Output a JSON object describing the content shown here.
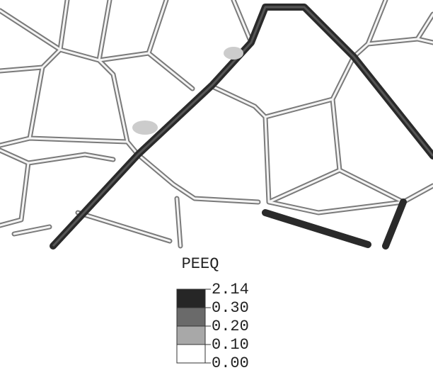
{
  "legend": {
    "title": "PEEQ",
    "levels": [
      "2.14",
      "0.30",
      "0.20",
      "0.10",
      "0.00"
    ],
    "colors": [
      "#262626",
      "#6a6a6a",
      "#a8a8a8",
      "#ffffff"
    ]
  }
}
